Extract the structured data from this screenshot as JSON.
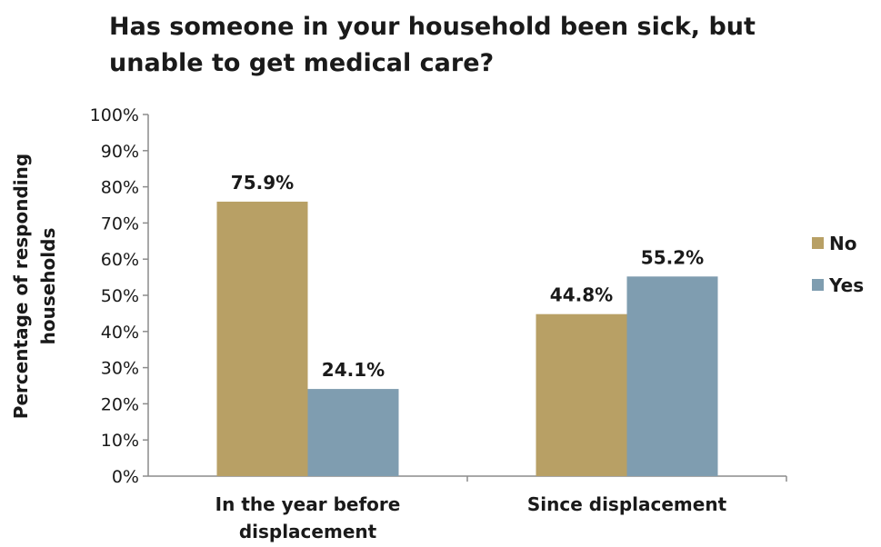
{
  "chart_data": {
    "type": "bar",
    "title_lines": [
      "Has someone in your household been sick, but",
      "unable to get medical care?"
    ],
    "ylabel_lines": [
      "Percentage of responding",
      "households"
    ],
    "xlabel": "",
    "categories": [
      [
        "In the year before",
        "displacement"
      ],
      [
        "Since displacement"
      ]
    ],
    "series": [
      {
        "name": "No",
        "color": "#b8a065",
        "values": [
          75.9,
          44.8
        ],
        "labels": [
          "75.9%",
          "44.8%"
        ]
      },
      {
        "name": "Yes",
        "color": "#7f9db0",
        "values": [
          24.1,
          55.2
        ],
        "labels": [
          "24.1%",
          "55.2%"
        ]
      }
    ],
    "ylim": [
      0,
      100
    ],
    "yticks": [
      "0%",
      "10%",
      "20%",
      "30%",
      "40%",
      "50%",
      "60%",
      "70%",
      "80%",
      "90%",
      "100%"
    ],
    "grid": false,
    "legend": "right"
  }
}
